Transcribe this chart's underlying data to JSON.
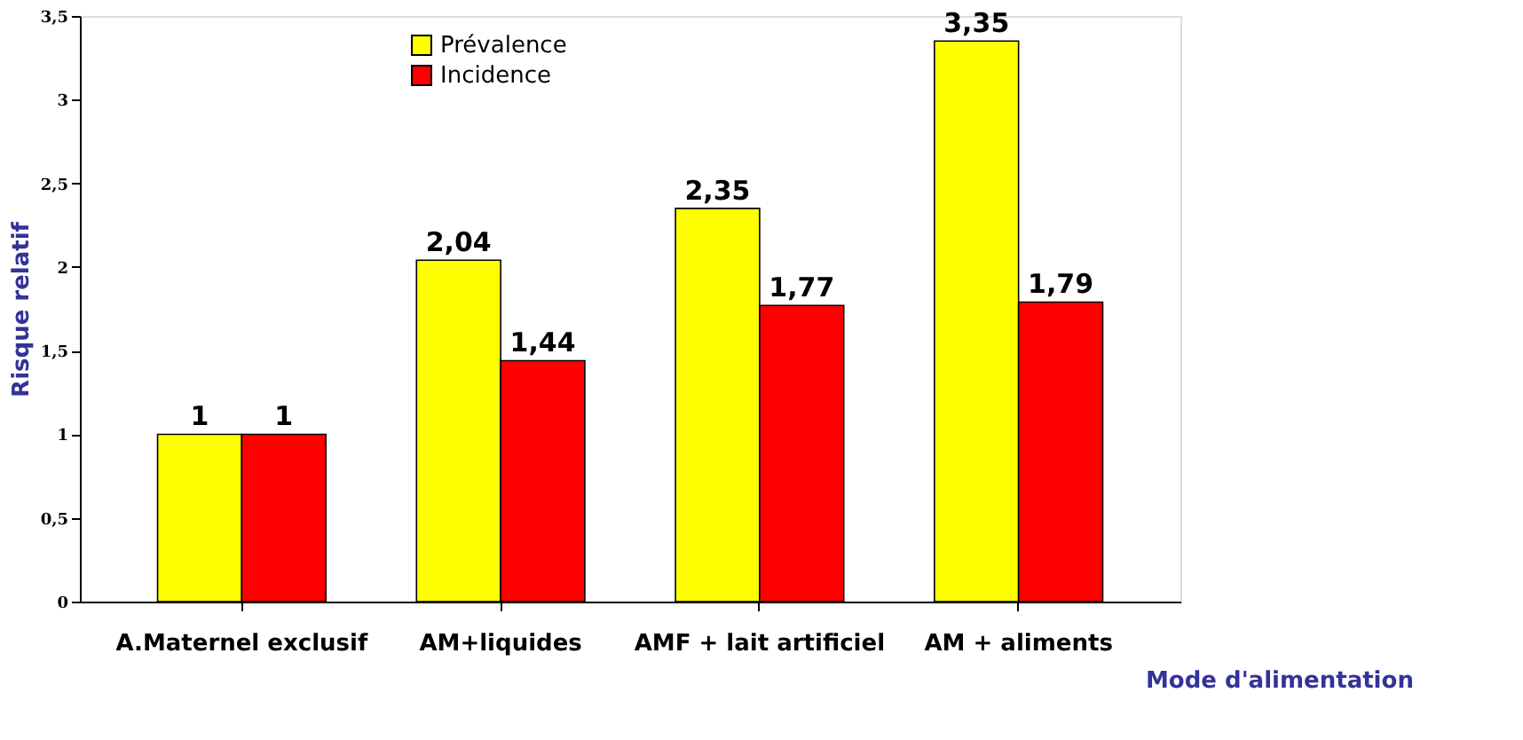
{
  "chart_data": {
    "type": "bar",
    "categories": [
      "A.Maternel exclusif",
      "AM+liquides",
      "AMF + lait artificiel",
      "AM + aliments"
    ],
    "series": [
      {
        "name": "Prévalence",
        "color": "#ffff00",
        "values": [
          1,
          2.04,
          2.35,
          3.35
        ],
        "value_labels": [
          "1",
          "2,04",
          "2,35",
          "3,35"
        ]
      },
      {
        "name": "Incidence",
        "color": "#ff0000",
        "values": [
          1,
          1.44,
          1.77,
          1.79
        ],
        "value_labels": [
          "1",
          "1,44",
          "1,77",
          "1,79"
        ]
      }
    ],
    "xlabel": "Mode d'alimentation",
    "ylabel": "Risque relatif",
    "ylim": [
      0,
      3.5
    ],
    "yticks": [
      0,
      {
        "value": 0.5,
        "label": "0,5"
      },
      1,
      {
        "value": 1.5,
        "label": "1,5"
      },
      2,
      {
        "value": 2.5,
        "label": "2,5"
      },
      3,
      {
        "value": 3.5,
        "label": "3,5"
      }
    ],
    "legend": "top",
    "grid": false
  }
}
